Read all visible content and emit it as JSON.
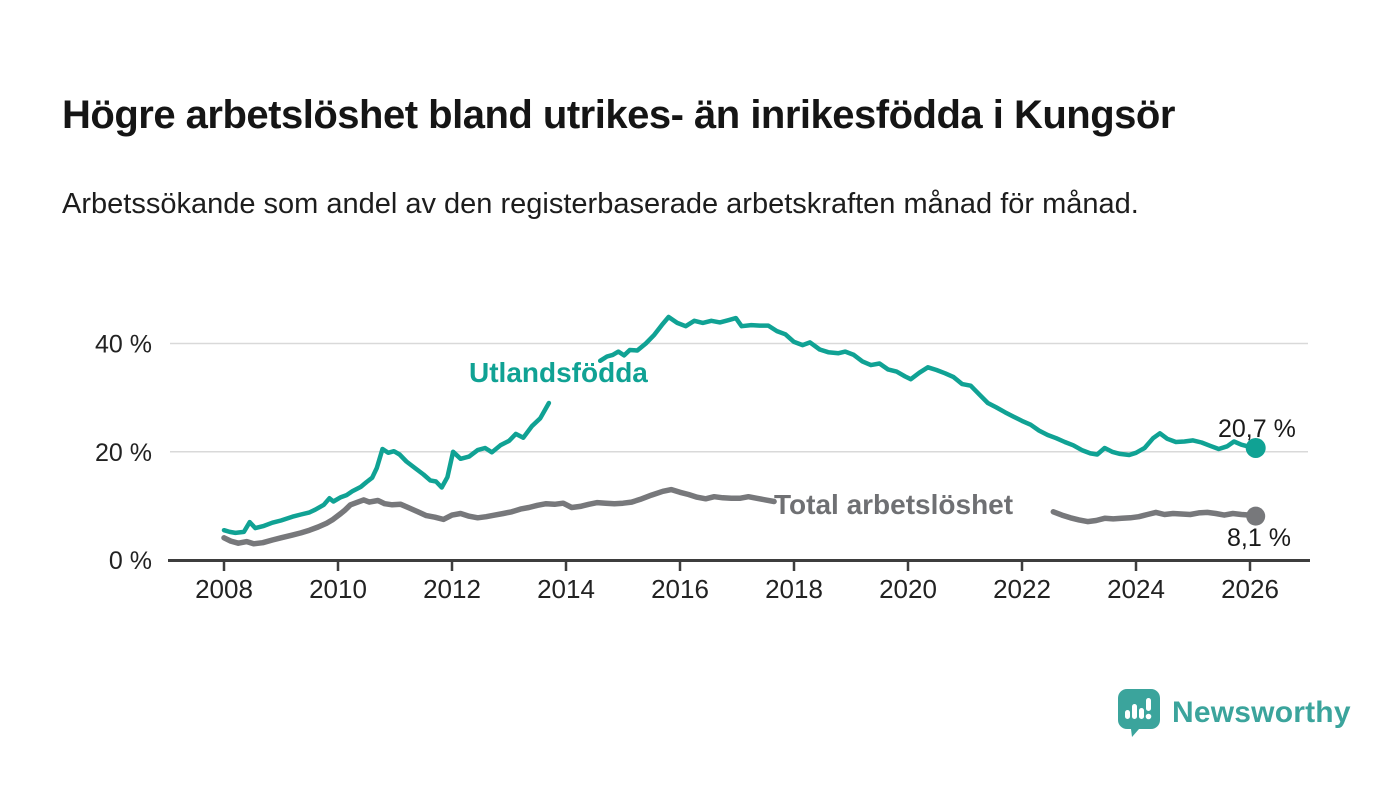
{
  "header": {
    "title": "Högre arbetslöshet bland utrikes- än inrikesfödda i Kungsör",
    "subtitle": "Arbetssökande som andel av den registerbaserade arbetskraften månad för månad."
  },
  "colors": {
    "teal": "#10a294",
    "gray": "#77787b",
    "label_gray": "#6f7073",
    "brand_teal": "#3ba49c",
    "axis": "#3d3d3d",
    "gridline": "#d9d9d9",
    "tick_text": "#222222"
  },
  "footer": {
    "brand": "Newsworthy",
    "brand_icon": "chart-speech-bubble-icon"
  },
  "chart_data": {
    "type": "line",
    "title": "Högre arbetslöshet bland utrikes- än inrikesfödda i Kungsör",
    "xlabel": "",
    "ylabel": "",
    "grid": "horizontal-only",
    "legend_position": "inline-labels",
    "x_ticks": {
      "values": [
        2008,
        2010,
        2012,
        2014,
        2016,
        2018,
        2020,
        2022,
        2024,
        2026
      ],
      "labels": [
        "2008",
        "2010",
        "2012",
        "2014",
        "2016",
        "2018",
        "2020",
        "2022",
        "2024",
        "2026"
      ]
    },
    "y_ticks": {
      "values": [
        0,
        20,
        40
      ],
      "labels": [
        "0 %",
        "20 %",
        "40 %"
      ]
    },
    "xlim": [
      2007.0,
      2027.0
    ],
    "ylim": [
      0,
      47
    ],
    "series": [
      {
        "name": "Utlandsfödda",
        "label": "Utlandsfödda",
        "end_label": "20,7 %",
        "end_value": 20.7,
        "color": "#10a294",
        "segments": [
          [
            [
              2008.0,
              5.5
            ],
            [
              2008.1,
              5.2
            ],
            [
              2008.2,
              5.0
            ],
            [
              2008.35,
              5.2
            ],
            [
              2008.45,
              7.0
            ],
            [
              2008.55,
              5.9
            ],
            [
              2008.7,
              6.3
            ],
            [
              2008.85,
              6.9
            ],
            [
              2009.0,
              7.3
            ],
            [
              2009.2,
              8.0
            ],
            [
              2009.35,
              8.4
            ],
            [
              2009.5,
              8.8
            ],
            [
              2009.6,
              9.3
            ],
            [
              2009.75,
              10.2
            ],
            [
              2009.85,
              11.4
            ],
            [
              2009.92,
              10.8
            ],
            [
              2010.05,
              11.6
            ],
            [
              2010.15,
              12.0
            ],
            [
              2010.25,
              12.7
            ],
            [
              2010.4,
              13.5
            ],
            [
              2010.5,
              14.4
            ],
            [
              2010.6,
              15.2
            ],
            [
              2010.68,
              17.0
            ],
            [
              2010.78,
              20.5
            ],
            [
              2010.88,
              19.8
            ],
            [
              2010.98,
              20.1
            ],
            [
              2011.08,
              19.5
            ],
            [
              2011.2,
              18.2
            ],
            [
              2011.35,
              17.0
            ],
            [
              2011.5,
              15.8
            ],
            [
              2011.62,
              14.7
            ],
            [
              2011.72,
              14.5
            ],
            [
              2011.82,
              13.4
            ],
            [
              2011.92,
              15.3
            ],
            [
              2012.02,
              20.0
            ],
            [
              2012.15,
              18.7
            ],
            [
              2012.3,
              19.1
            ],
            [
              2012.45,
              20.3
            ],
            [
              2012.58,
              20.7
            ],
            [
              2012.7,
              19.9
            ],
            [
              2012.85,
              21.2
            ],
            [
              2013.0,
              22.0
            ],
            [
              2013.12,
              23.3
            ],
            [
              2013.25,
              22.6
            ],
            [
              2013.4,
              24.7
            ],
            [
              2013.55,
              26.2
            ],
            [
              2013.7,
              29.0
            ]
          ],
          [
            [
              2014.6,
              36.8
            ],
            [
              2014.72,
              37.6
            ],
            [
              2014.82,
              37.9
            ],
            [
              2014.92,
              38.5
            ],
            [
              2015.02,
              37.8
            ],
            [
              2015.12,
              38.8
            ],
            [
              2015.25,
              38.7
            ],
            [
              2015.4,
              40.0
            ],
            [
              2015.55,
              41.6
            ],
            [
              2015.68,
              43.4
            ],
            [
              2015.8,
              44.9
            ],
            [
              2015.95,
              43.8
            ],
            [
              2016.1,
              43.2
            ],
            [
              2016.25,
              44.2
            ],
            [
              2016.4,
              43.8
            ],
            [
              2016.55,
              44.2
            ],
            [
              2016.7,
              43.9
            ],
            [
              2016.85,
              44.3
            ],
            [
              2016.98,
              44.7
            ],
            [
              2017.08,
              43.2
            ],
            [
              2017.25,
              43.4
            ],
            [
              2017.4,
              43.3
            ],
            [
              2017.55,
              43.3
            ],
            [
              2017.7,
              42.3
            ],
            [
              2017.85,
              41.7
            ],
            [
              2018.0,
              40.3
            ],
            [
              2018.15,
              39.7
            ],
            [
              2018.28,
              40.2
            ],
            [
              2018.45,
              38.9
            ],
            [
              2018.6,
              38.4
            ],
            [
              2018.78,
              38.2
            ],
            [
              2018.9,
              38.5
            ],
            [
              2019.05,
              37.9
            ],
            [
              2019.2,
              36.7
            ],
            [
              2019.35,
              36.0
            ],
            [
              2019.5,
              36.3
            ],
            [
              2019.65,
              35.2
            ],
            [
              2019.8,
              34.8
            ],
            [
              2019.95,
              33.9
            ],
            [
              2020.05,
              33.4
            ],
            [
              2020.2,
              34.6
            ],
            [
              2020.35,
              35.6
            ],
            [
              2020.5,
              35.1
            ],
            [
              2020.65,
              34.5
            ],
            [
              2020.8,
              33.8
            ],
            [
              2020.95,
              32.5
            ],
            [
              2021.1,
              32.2
            ],
            [
              2021.25,
              30.6
            ],
            [
              2021.4,
              29.0
            ],
            [
              2021.55,
              28.2
            ],
            [
              2021.7,
              27.3
            ],
            [
              2021.85,
              26.5
            ],
            [
              2022.0,
              25.7
            ],
            [
              2022.15,
              25.0
            ],
            [
              2022.3,
              23.9
            ],
            [
              2022.45,
              23.1
            ],
            [
              2022.6,
              22.5
            ],
            [
              2022.75,
              21.8
            ],
            [
              2022.9,
              21.2
            ],
            [
              2023.05,
              20.3
            ],
            [
              2023.2,
              19.7
            ],
            [
              2023.32,
              19.5
            ],
            [
              2023.45,
              20.7
            ],
            [
              2023.58,
              20.0
            ],
            [
              2023.72,
              19.6
            ],
            [
              2023.88,
              19.4
            ],
            [
              2024.0,
              19.8
            ],
            [
              2024.15,
              20.7
            ],
            [
              2024.3,
              22.5
            ],
            [
              2024.42,
              23.4
            ],
            [
              2024.55,
              22.4
            ],
            [
              2024.7,
              21.8
            ],
            [
              2024.85,
              21.9
            ],
            [
              2025.0,
              22.1
            ],
            [
              2025.15,
              21.7
            ],
            [
              2025.3,
              21.1
            ],
            [
              2025.45,
              20.5
            ],
            [
              2025.6,
              21.0
            ],
            [
              2025.72,
              21.9
            ],
            [
              2025.85,
              21.3
            ],
            [
              2026.0,
              20.9
            ],
            [
              2026.1,
              20.7
            ]
          ]
        ]
      },
      {
        "name": "Total arbetslöshet",
        "label": "Total arbetslöshet",
        "end_label": "8,1 %",
        "end_value": 8.1,
        "color": "#77787b",
        "segments": [
          [
            [
              2008.0,
              4.1
            ],
            [
              2008.12,
              3.5
            ],
            [
              2008.25,
              3.1
            ],
            [
              2008.4,
              3.4
            ],
            [
              2008.52,
              3.0
            ],
            [
              2008.68,
              3.2
            ],
            [
              2008.85,
              3.7
            ],
            [
              2009.0,
              4.1
            ],
            [
              2009.2,
              4.6
            ],
            [
              2009.35,
              5.0
            ],
            [
              2009.5,
              5.5
            ],
            [
              2009.65,
              6.1
            ],
            [
              2009.8,
              6.8
            ],
            [
              2009.9,
              7.4
            ],
            [
              2010.05,
              8.6
            ],
            [
              2010.12,
              9.2
            ],
            [
              2010.22,
              10.2
            ],
            [
              2010.35,
              10.7
            ],
            [
              2010.45,
              11.1
            ],
            [
              2010.55,
              10.7
            ],
            [
              2010.7,
              11.0
            ],
            [
              2010.82,
              10.4
            ],
            [
              2010.95,
              10.2
            ],
            [
              2011.1,
              10.3
            ],
            [
              2011.25,
              9.6
            ],
            [
              2011.4,
              8.9
            ],
            [
              2011.55,
              8.2
            ],
            [
              2011.7,
              7.9
            ],
            [
              2011.85,
              7.5
            ],
            [
              2012.0,
              8.3
            ],
            [
              2012.15,
              8.6
            ],
            [
              2012.3,
              8.1
            ],
            [
              2012.45,
              7.8
            ],
            [
              2012.6,
              8.0
            ],
            [
              2012.75,
              8.3
            ],
            [
              2012.9,
              8.6
            ],
            [
              2013.05,
              8.9
            ],
            [
              2013.2,
              9.4
            ],
            [
              2013.35,
              9.7
            ],
            [
              2013.5,
              10.1
            ],
            [
              2013.65,
              10.4
            ],
            [
              2013.8,
              10.3
            ],
            [
              2013.95,
              10.5
            ],
            [
              2014.1,
              9.7
            ],
            [
              2014.25,
              9.9
            ],
            [
              2014.4,
              10.3
            ],
            [
              2014.55,
              10.6
            ],
            [
              2014.7,
              10.5
            ],
            [
              2014.85,
              10.4
            ],
            [
              2015.0,
              10.5
            ],
            [
              2015.15,
              10.7
            ],
            [
              2015.3,
              11.2
            ],
            [
              2015.5,
              12.0
            ],
            [
              2015.7,
              12.7
            ],
            [
              2015.85,
              13.0
            ],
            [
              2016.0,
              12.5
            ],
            [
              2016.15,
              12.1
            ],
            [
              2016.3,
              11.6
            ],
            [
              2016.45,
              11.3
            ],
            [
              2016.6,
              11.7
            ],
            [
              2016.75,
              11.5
            ],
            [
              2016.9,
              11.4
            ],
            [
              2017.05,
              11.4
            ],
            [
              2017.2,
              11.7
            ],
            [
              2017.35,
              11.4
            ],
            [
              2017.5,
              11.1
            ],
            [
              2017.65,
              10.8
            ]
          ],
          [
            [
              2022.55,
              8.9
            ],
            [
              2022.7,
              8.3
            ],
            [
              2022.85,
              7.8
            ],
            [
              2023.0,
              7.4
            ],
            [
              2023.15,
              7.1
            ],
            [
              2023.3,
              7.3
            ],
            [
              2023.45,
              7.7
            ],
            [
              2023.6,
              7.6
            ],
            [
              2023.75,
              7.7
            ],
            [
              2023.9,
              7.8
            ],
            [
              2024.05,
              8.0
            ],
            [
              2024.2,
              8.4
            ],
            [
              2024.35,
              8.8
            ],
            [
              2024.5,
              8.4
            ],
            [
              2024.65,
              8.6
            ],
            [
              2024.8,
              8.5
            ],
            [
              2024.95,
              8.4
            ],
            [
              2025.1,
              8.7
            ],
            [
              2025.25,
              8.8
            ],
            [
              2025.4,
              8.6
            ],
            [
              2025.55,
              8.3
            ],
            [
              2025.7,
              8.6
            ],
            [
              2025.85,
              8.4
            ],
            [
              2026.0,
              8.3
            ],
            [
              2026.1,
              8.1
            ]
          ]
        ]
      }
    ]
  }
}
